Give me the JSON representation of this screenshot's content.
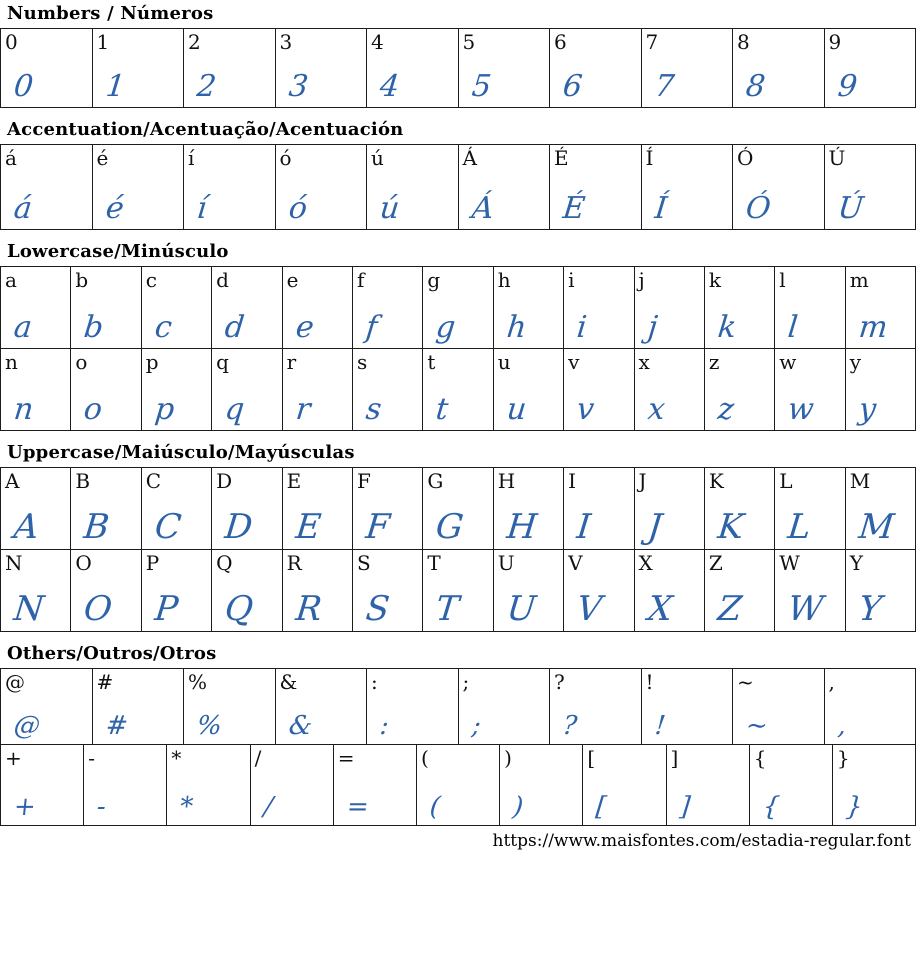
{
  "page": {
    "background": "#ffffff",
    "border_color": "#1c1c1c",
    "accent_blue": "#2e63a9"
  },
  "sections": [
    {
      "id": "numbers",
      "title": "Numbers / Números",
      "rows": [
        [
          "0",
          "1",
          "2",
          "3",
          "4",
          "5",
          "6",
          "7",
          "8",
          "9"
        ]
      ]
    },
    {
      "id": "accentuation",
      "title": "Accentuation/Acentuação/Acentuación",
      "rows": [
        [
          "á",
          "é",
          "í",
          "ó",
          "ú",
          "Á",
          "É",
          "Í",
          "Ó",
          "Ú"
        ]
      ]
    },
    {
      "id": "lowercase",
      "title": "Lowercase/Minúsculo",
      "rows": [
        [
          "a",
          "b",
          "c",
          "d",
          "e",
          "f",
          "g",
          "h",
          "i",
          "j",
          "k",
          "l",
          "m"
        ],
        [
          "n",
          "o",
          "p",
          "q",
          "r",
          "s",
          "t",
          "u",
          "v",
          "x",
          "z",
          "w",
          "y"
        ]
      ]
    },
    {
      "id": "uppercase",
      "title": "Uppercase/Maiúsculo/Mayúsculas",
      "rows": [
        [
          "A",
          "B",
          "C",
          "D",
          "E",
          "F",
          "G",
          "H",
          "I",
          "J",
          "K",
          "L",
          "M"
        ],
        [
          "N",
          "O",
          "P",
          "Q",
          "R",
          "S",
          "T",
          "U",
          "V",
          "X",
          "Z",
          "W",
          "Y"
        ]
      ]
    },
    {
      "id": "others",
      "title": "Others/Outros/Otros",
      "rows": [
        [
          "@",
          "#",
          "%",
          "&",
          ":",
          ";",
          "?",
          "!",
          "~",
          ","
        ],
        [
          "+",
          "-",
          "*",
          "/",
          "=",
          "(",
          ")",
          "[",
          "]",
          "{",
          "}"
        ]
      ]
    }
  ],
  "footer": {
    "url": "https://www.maisfontes.com/estadia-regular.font"
  }
}
